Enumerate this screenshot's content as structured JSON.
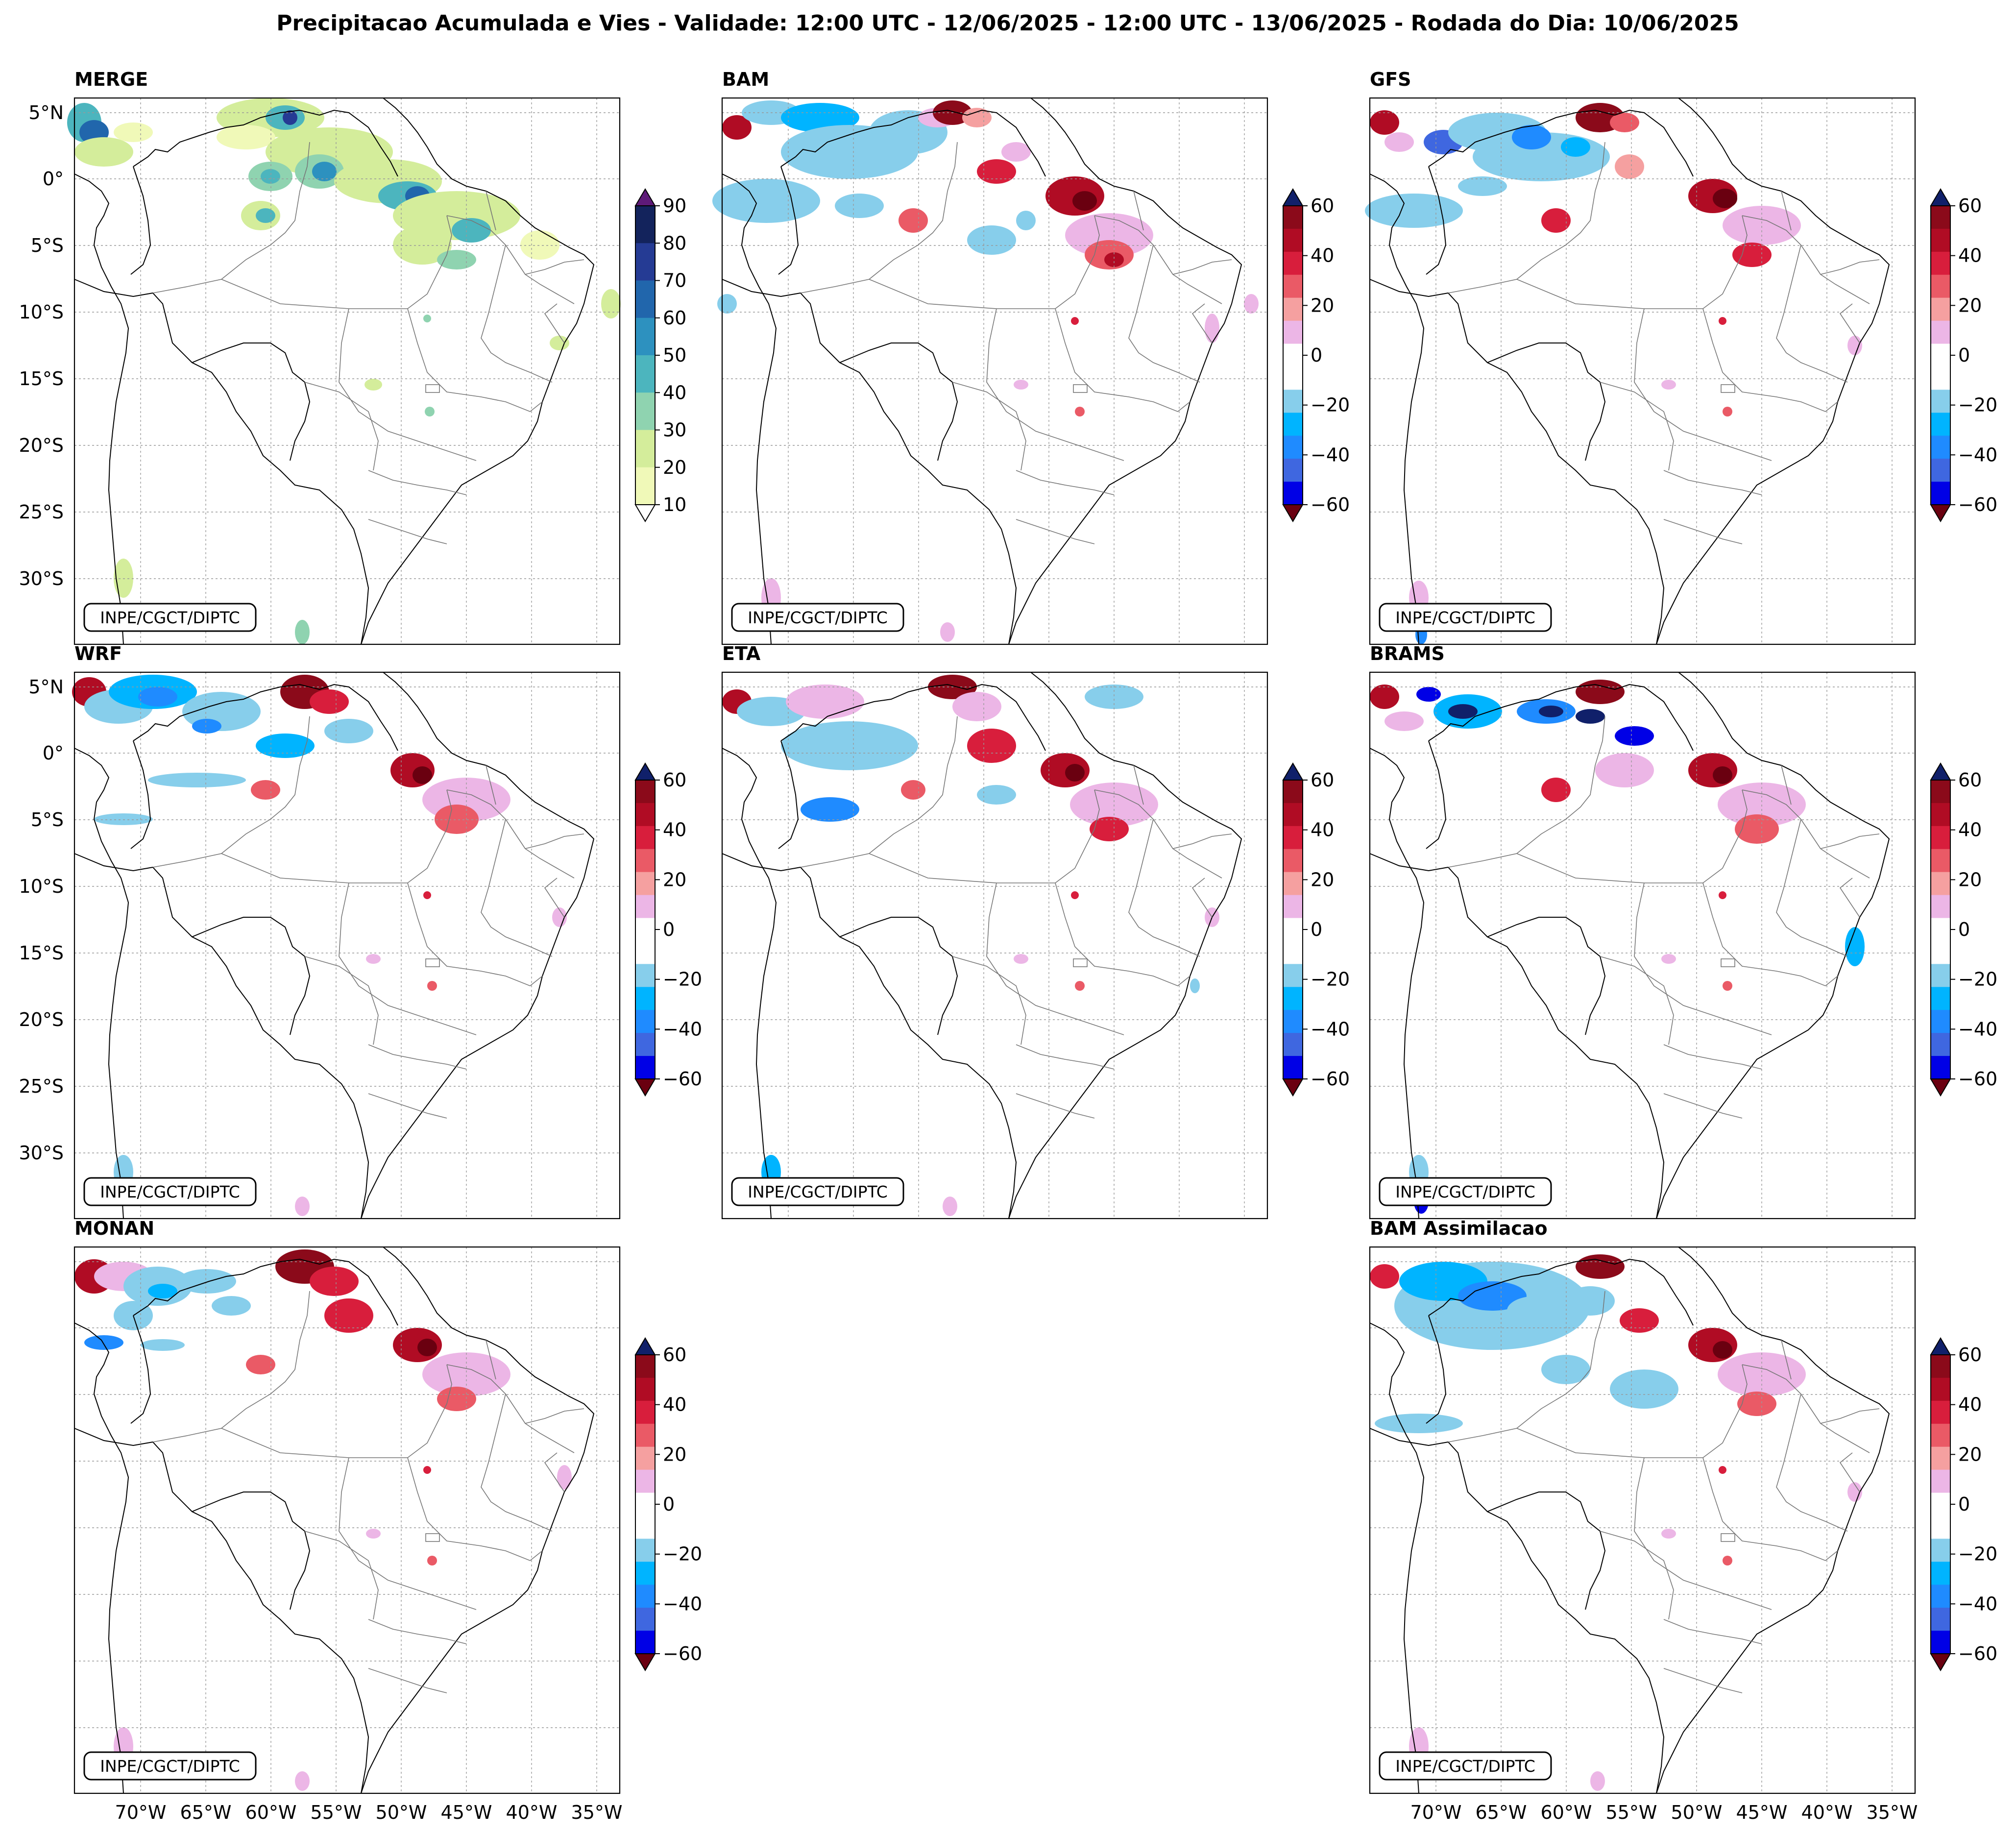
{
  "title": "Precipitacao Acumulada e Vies - Validade: 12:00 UTC - 12/06/2025 - 12:00 UTC - 13/06/2025 - Rodada do Dia: 10/06/2025",
  "credit": "INPE/CGCT/DIPTC",
  "lat_labels": [
    "5°N",
    "0°",
    "5°S",
    "10°S",
    "15°S",
    "20°S",
    "25°S",
    "30°S"
  ],
  "lon_labels": [
    "70°W",
    "65°W",
    "60°W",
    "55°W",
    "50°W",
    "45°W",
    "40°W",
    "35°W"
  ],
  "precip_colorbar": {
    "ticks": [
      "10",
      "20",
      "30",
      "40",
      "50",
      "60",
      "70",
      "80",
      "90"
    ],
    "colors": [
      "#f0f9b8",
      "#d4ed9b",
      "#8fd3b0",
      "#4cb5be",
      "#2d91bf",
      "#2166ac",
      "#253b94",
      "#13235c"
    ],
    "extend_high": "#5e1a78",
    "extend_low": "#ffffff"
  },
  "bias_colorbar": {
    "ticks": [
      "60",
      "40",
      "20",
      "0",
      "−20",
      "−40",
      "−60"
    ],
    "colors": [
      "#0000e6",
      "#3f67e0",
      "#1f8bff",
      "#00b4ff",
      "#87ceeb",
      "#ffffff",
      "#ffffff",
      "#ecb6e6",
      "#f5a0a0",
      "#ea5a66",
      "#d81e3c",
      "#b00c24",
      "#8b0a1a"
    ],
    "extend_high": "#10206a",
    "extend_low": "#6a0010"
  },
  "panels": [
    {
      "id": "merge",
      "title": "MERGE",
      "colorbar": "precip"
    },
    {
      "id": "bam",
      "title": "BAM",
      "colorbar": "bias"
    },
    {
      "id": "gfs",
      "title": "GFS",
      "colorbar": "bias"
    },
    {
      "id": "wrf",
      "title": "WRF",
      "colorbar": "bias"
    },
    {
      "id": "eta",
      "title": "ETA",
      "colorbar": "bias"
    },
    {
      "id": "brams",
      "title": "BRAMS",
      "colorbar": "bias"
    },
    {
      "id": "monan",
      "title": "MONAN",
      "colorbar": "bias"
    },
    {
      "id": "bamass",
      "title": "BAM Assimilacao",
      "colorbar": "bias"
    }
  ]
}
